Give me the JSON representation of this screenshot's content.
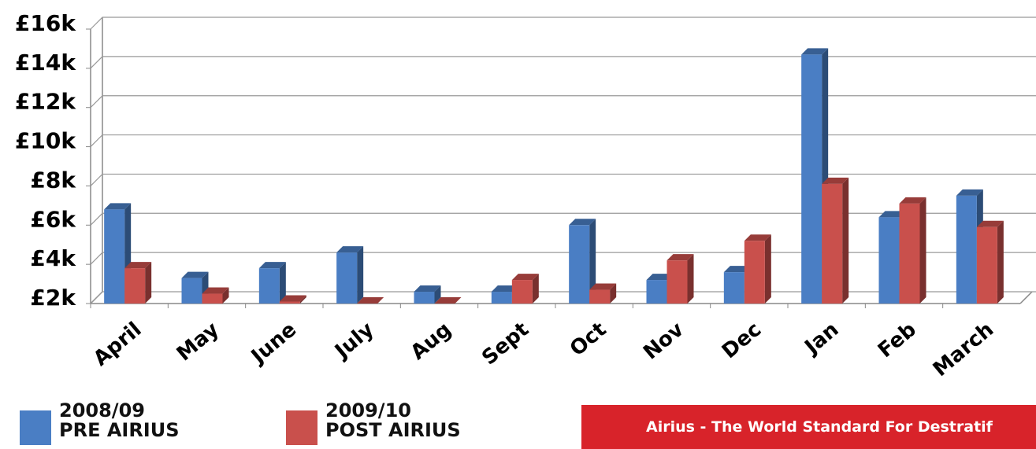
{
  "chart_data": {
    "type": "bar3d",
    "categories": [
      "April",
      "May",
      "June",
      "July",
      "Aug",
      "Sept",
      "Oct",
      "Nov",
      "Dec",
      "Jan",
      "Feb",
      "March"
    ],
    "series": [
      {
        "name": "2008/09\nPRE AIRIUS",
        "color": "#4a7ec4",
        "values": [
          6800,
          3300,
          3800,
          4600,
          2600,
          2600,
          6000,
          3200,
          3600,
          14700,
          6400,
          7500
        ]
      },
      {
        "name": "2009/10\nPOST AIRIUS",
        "color": "#c9504c",
        "values": [
          3800,
          2500,
          2100,
          2000,
          2000,
          3200,
          2700,
          4200,
          5200,
          8100,
          7100,
          5900
        ]
      }
    ],
    "ylim": [
      2000,
      16000
    ],
    "yticks": [
      {
        "value": 2000,
        "label": "£2k"
      },
      {
        "value": 4000,
        "label": "£4k"
      },
      {
        "value": 6000,
        "label": "£6k"
      },
      {
        "value": 8000,
        "label": "£8k"
      },
      {
        "value": 10000,
        "label": "£10k"
      },
      {
        "value": 12000,
        "label": "£12k"
      },
      {
        "value": 14000,
        "label": "£14k"
      },
      {
        "value": 16000,
        "label": "£16k"
      }
    ],
    "grid": true,
    "banner": "Airius - The World Standard For Destratif"
  }
}
